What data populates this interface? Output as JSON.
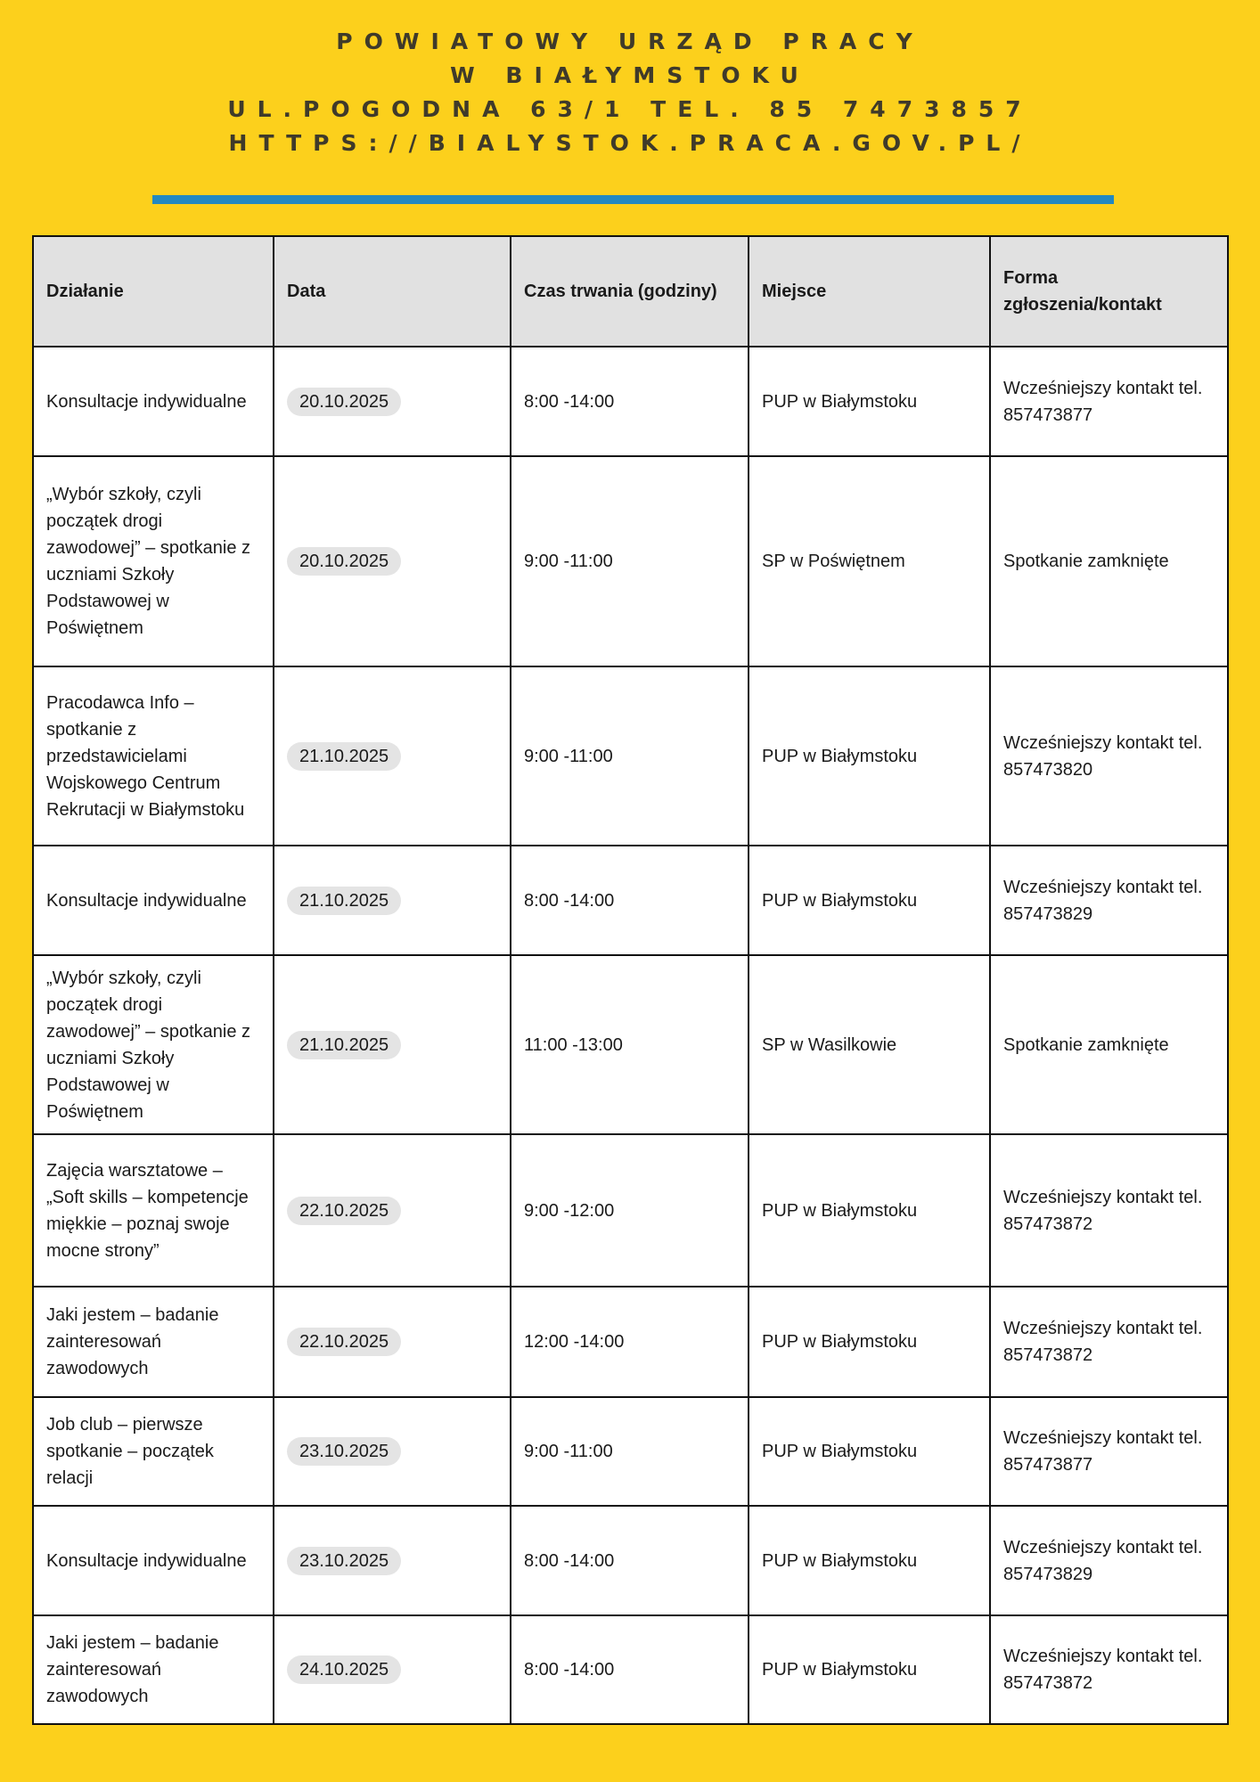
{
  "header": {
    "lines": [
      "POWIATOWY URZĄD PRACY",
      "W BIAŁYMSTOKU",
      "UL.POGODNA 63/1 TEL. 85 7473857",
      "HTTPS://BIALYSTOK.PRACA.GOV.PL/"
    ],
    "colors": {
      "background": "#fcd01c",
      "divider": "#2388c0",
      "text": "#3f3a2a"
    }
  },
  "table": {
    "columns": [
      "Działanie",
      "Data",
      "Czas trwania (godziny)",
      "Miejsce",
      "Forma zgłoszenia/kontakt"
    ],
    "rows": [
      [
        "Konsultacje indywidualne",
        "20.10.2025",
        "8:00 -14:00",
        "PUP w Białymstoku",
        "Wcześniejszy kontakt tel. 857473877"
      ],
      [
        "„Wybór szkoły, czyli początek drogi zawodowej” – spotkanie z uczniami Szkoły Podstawowej w Poświętnem",
        "20.10.2025",
        "9:00 -11:00",
        "SP w Poświętnem",
        "Spotkanie zamknięte"
      ],
      [
        "Pracodawca Info – spotkanie z przedstawicielami Wojskowego Centrum Rekrutacji w Białymstoku",
        "21.10.2025",
        "9:00 -11:00",
        "PUP w Białymstoku",
        "Wcześniejszy kontakt tel. 857473820"
      ],
      [
        "Konsultacje indywidualne",
        "21.10.2025",
        "8:00 -14:00",
        "PUP w Białymstoku",
        "Wcześniejszy kontakt tel. 857473829"
      ],
      [
        "„Wybór szkoły, czyli początek drogi zawodowej” – spotkanie z uczniami Szkoły Podstawowej w Poświętnem",
        "21.10.2025",
        "11:00 -13:00",
        "SP w Wasilkowie",
        "Spotkanie zamknięte"
      ],
      [
        "Zajęcia warsztatowe – „Soft skills – kompetencje miękkie – poznaj swoje mocne strony”",
        "22.10.2025",
        "9:00 -12:00",
        "PUP w Białymstoku",
        "Wcześniejszy kontakt tel. 857473872"
      ],
      [
        "Jaki jestem – badanie zainteresowań zawodowych",
        "22.10.2025",
        "12:00 -14:00",
        "PUP w Białymstoku",
        "Wcześniejszy kontakt tel. 857473872"
      ],
      [
        "Job club – pierwsze spotkanie – początek relacji",
        "23.10.2025",
        "9:00 -11:00",
        "PUP w Białymstoku",
        "Wcześniejszy kontakt tel. 857473877"
      ],
      [
        "Konsultacje indywidualne",
        "23.10.2025",
        "8:00 -14:00",
        "PUP w Białymstoku",
        "Wcześniejszy kontakt tel. 857473829"
      ],
      [
        "Jaki jestem – badanie zainteresowań zawodowych",
        "24.10.2025",
        "8:00 -14:00",
        "PUP w Białymstoku",
        "Wcześniejszy kontakt tel. 857473872"
      ]
    ]
  }
}
